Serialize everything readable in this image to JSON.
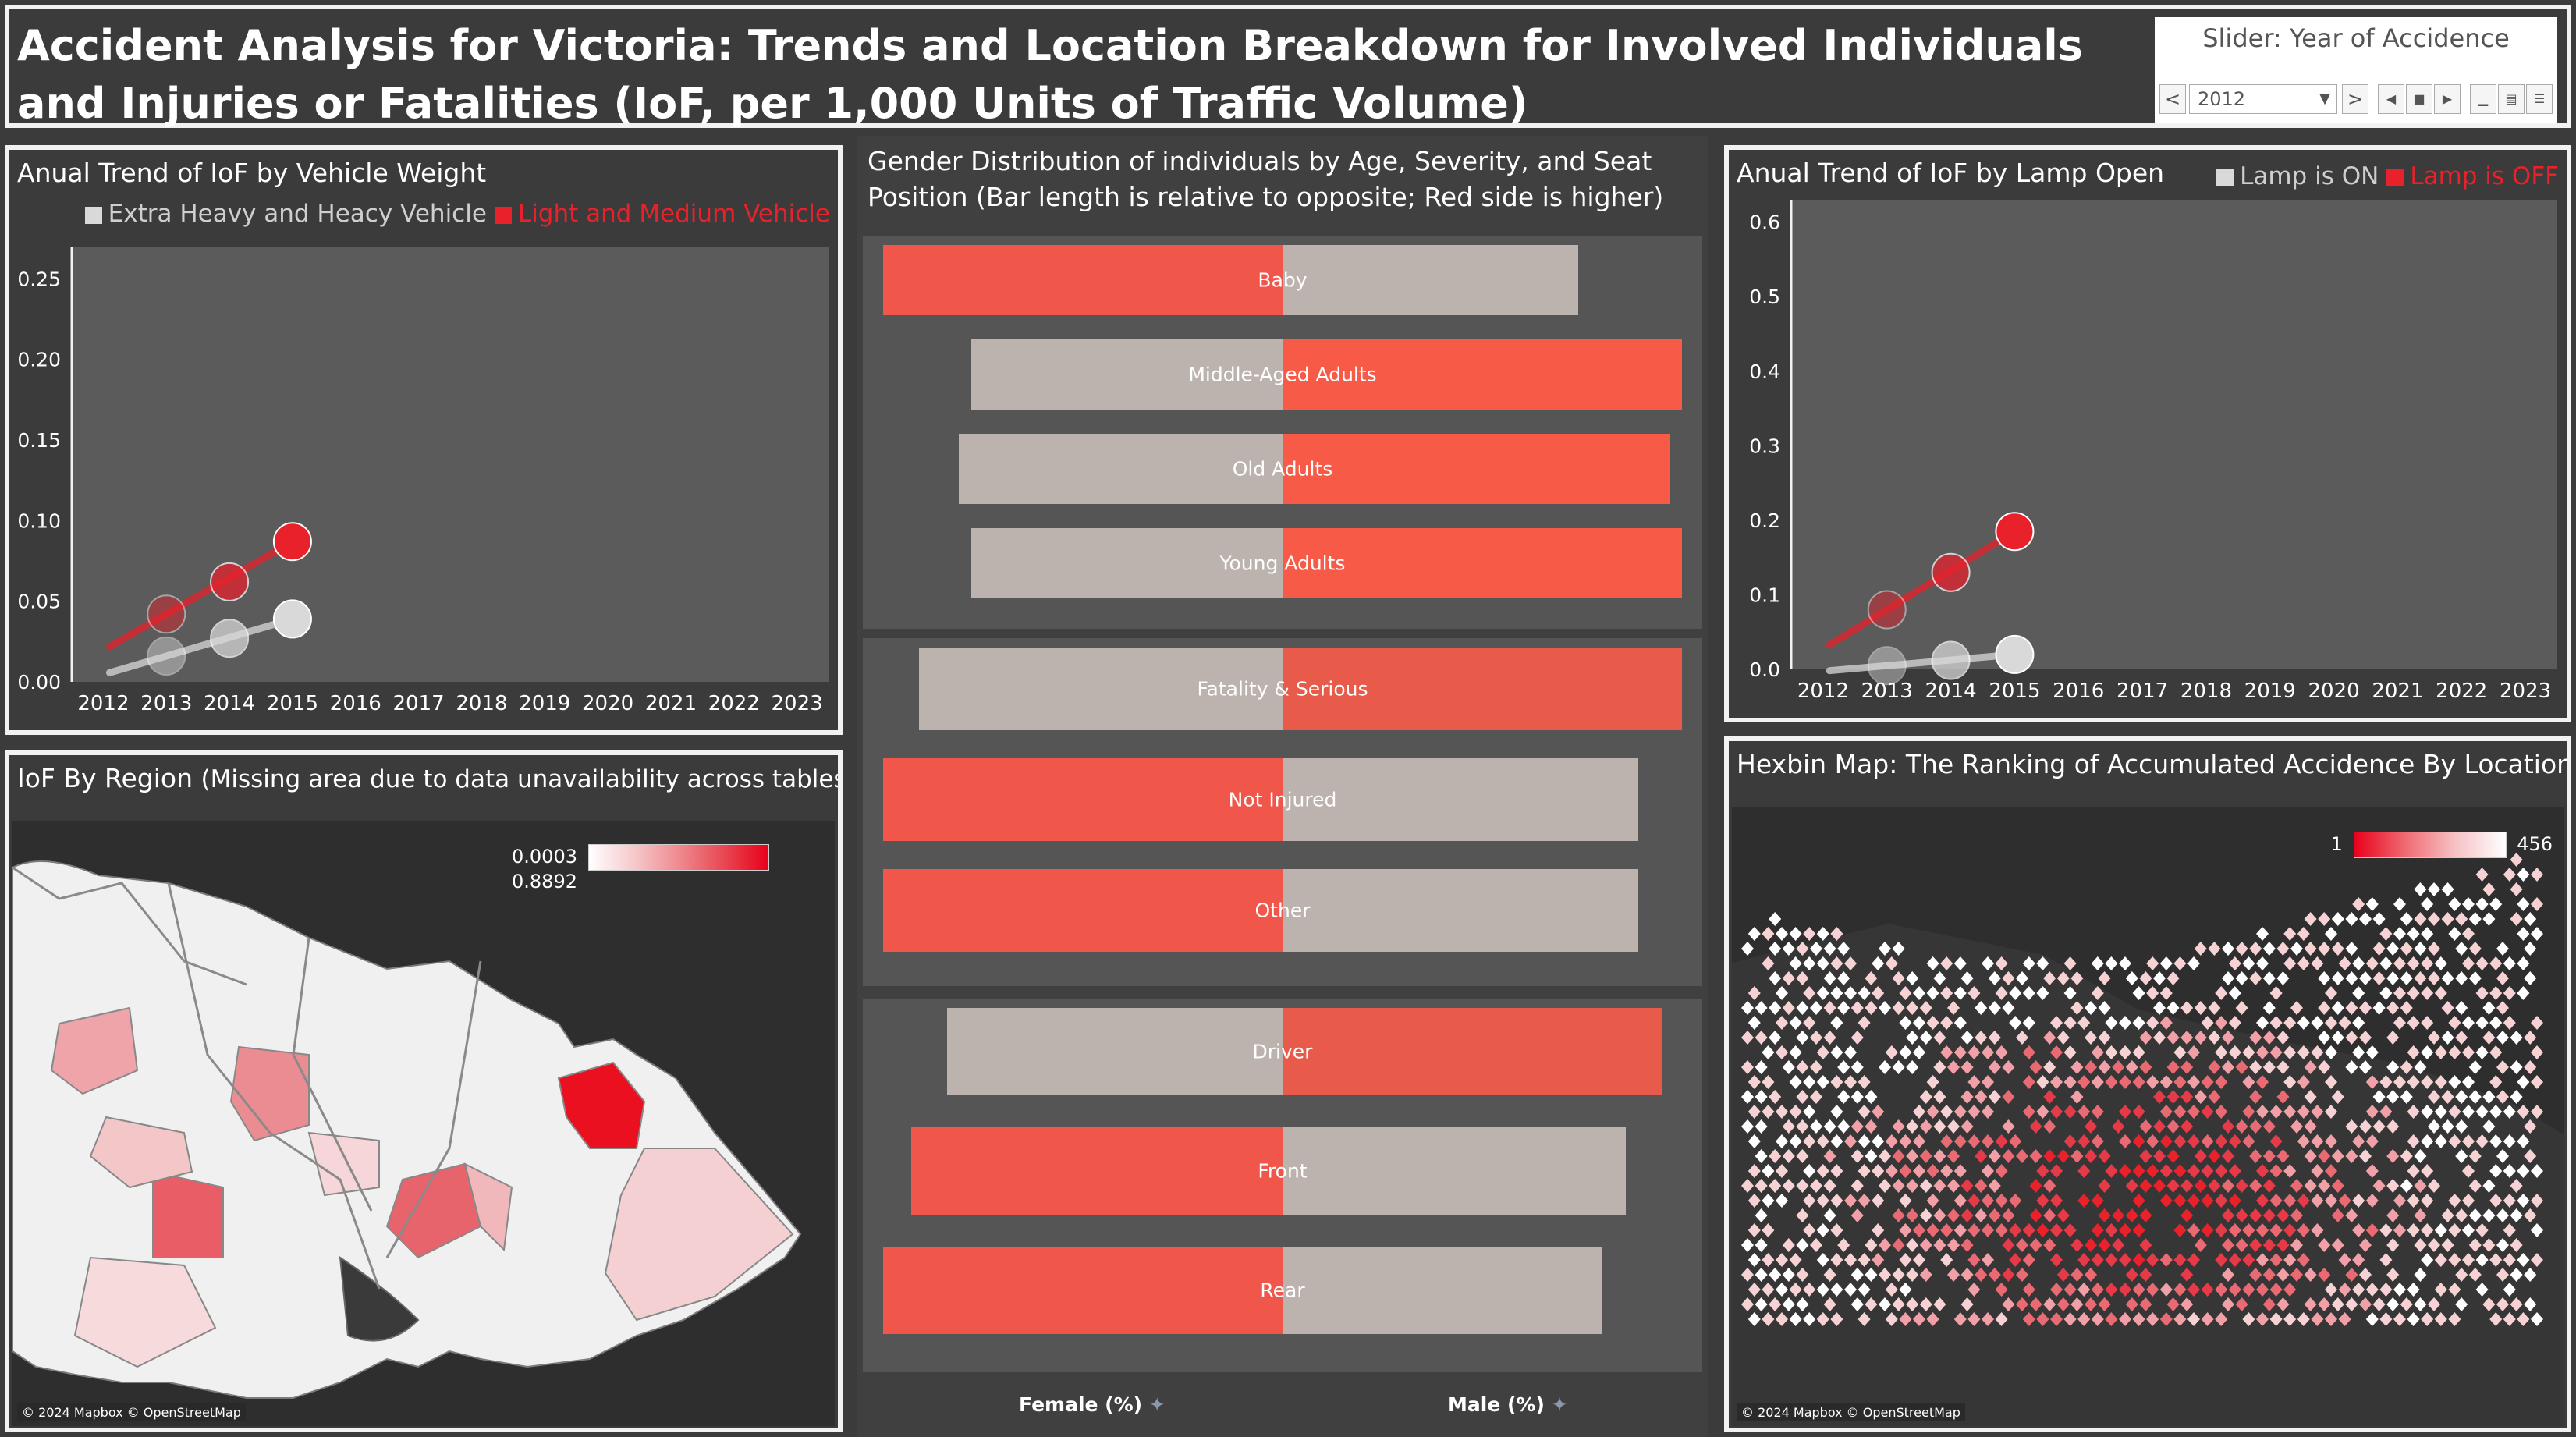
{
  "header": {
    "title": "Accident Analysis for Victoria: Trends and Location Breakdown for Involved Individuals and Injuries or Fatalities (IoF, per 1,000 Units of Traffic Volume)",
    "slider": {
      "title": "Slider: Year of Accidence",
      "value": "2012",
      "prev": "<",
      "next": ">"
    }
  },
  "colors": {
    "red": "#e8212b",
    "grey": "#d9d9d9",
    "female_bar": "#bdb3ae",
    "male_bar": "#f0564a",
    "bg": "#3b3b3b"
  },
  "chart_data": [
    {
      "id": "vehicle_weight",
      "type": "scatter",
      "title": "Anual Trend of IoF by Vehicle Weight",
      "x": [
        "2012",
        "2013",
        "2014",
        "2015",
        "2016",
        "2017",
        "2018",
        "2019",
        "2020",
        "2021",
        "2022",
        "2023"
      ],
      "ylim": [
        0,
        0.27
      ],
      "yticks": [
        "0.00",
        "0.05",
        "0.10",
        "0.15",
        "0.20",
        "0.25"
      ],
      "ytick_values": [
        0,
        0.05,
        0.1,
        0.15,
        0.2,
        0.25
      ],
      "series": [
        {
          "name": "Extra Heavy and Heacy Vehicle",
          "color": "#d9d9d9",
          "points": [
            [
              2013,
              0.016
            ],
            [
              2014,
              0.027
            ],
            [
              2015,
              0.039
            ]
          ]
        },
        {
          "name": "Light and Medium Vehicle",
          "color": "#e8212b",
          "points": [
            [
              2013,
              0.042
            ],
            [
              2014,
              0.062
            ],
            [
              2015,
              0.087
            ]
          ]
        }
      ]
    },
    {
      "id": "lamp_open",
      "type": "scatter",
      "title": "Anual Trend of IoF by Lamp Open",
      "x": [
        "2012",
        "2013",
        "2014",
        "2015",
        "2016",
        "2017",
        "2018",
        "2019",
        "2020",
        "2021",
        "2022",
        "2023"
      ],
      "ylim": [
        0,
        0.63
      ],
      "yticks": [
        "0.0",
        "0.1",
        "0.2",
        "0.3",
        "0.4",
        "0.5",
        "0.6"
      ],
      "ytick_values": [
        0,
        0.1,
        0.2,
        0.3,
        0.4,
        0.5,
        0.6
      ],
      "series": [
        {
          "name": "Lamp is ON",
          "color": "#d9d9d9",
          "points": [
            [
              2013,
              0.005
            ],
            [
              2014,
              0.012
            ],
            [
              2015,
              0.02
            ]
          ]
        },
        {
          "name": "Lamp is OFF",
          "color": "#e8212b",
          "points": [
            [
              2013,
              0.08
            ],
            [
              2014,
              0.13
            ],
            [
              2015,
              0.185
            ]
          ]
        }
      ]
    },
    {
      "id": "gender_distribution",
      "type": "bar",
      "title": "Gender Distribution of individuals by Age, Severity, and Seat Position (Bar length is relative to opposite; Red side is higher)",
      "xlabels": [
        "Female (%)",
        "Male (%)"
      ],
      "groups": [
        {
          "rows": [
            {
              "category": "Baby",
              "female": 1.0,
              "male": 0.74
            },
            {
              "category": "Middle-Aged Adults",
              "female": 0.78,
              "male": 1.0
            },
            {
              "category": "Old Adults",
              "female": 0.81,
              "male": 0.97
            },
            {
              "category": "Young Adults",
              "female": 0.78,
              "male": 1.0
            }
          ]
        },
        {
          "rows": [
            {
              "category": "Fatality & Serious",
              "female": 0.91,
              "male": 1.0
            },
            {
              "category": "Not Injured",
              "female": 1.0,
              "male": 0.89
            },
            {
              "category": "Other",
              "female": 1.0,
              "male": 0.89
            }
          ]
        },
        {
          "rows": [
            {
              "category": "Driver",
              "female": 0.84,
              "male": 0.95
            },
            {
              "category": "Front",
              "female": 0.93,
              "male": 0.86
            },
            {
              "category": "Rear",
              "female": 1.0,
              "male": 0.8
            }
          ]
        }
      ]
    }
  ],
  "region_map": {
    "title_main": "IoF By Region",
    "title_note": "(Missing area due to data unavailability across tables)",
    "legend_min": "0.0003",
    "legend_max": "0.8892",
    "credit": "© 2024 Mapbox © OpenStreetMap"
  },
  "hexbin_map": {
    "title": "Hexbin Map: The Ranking of Accumulated Accidence By Location",
    "legend_min": "1",
    "legend_max": "456",
    "credit": "© 2024 Mapbox © OpenStreetMap"
  }
}
